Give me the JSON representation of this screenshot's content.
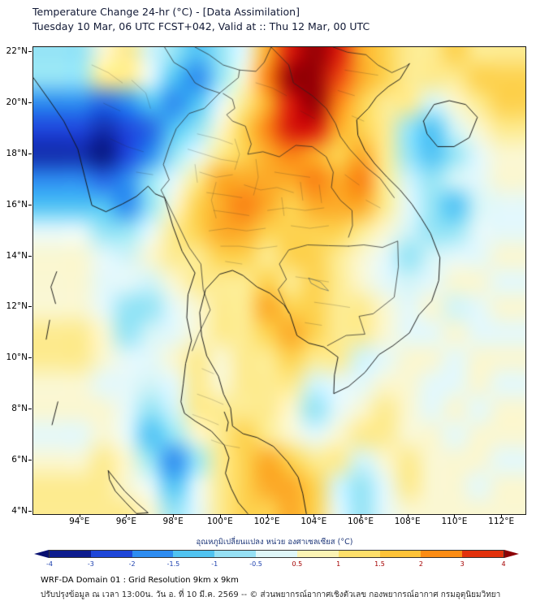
{
  "footer": {
    "line1": "WRF-DA Domain 01 : Grid Resolution 9km x 9km",
    "line2": "ปรับปรุงข้อมูล ณ เวลา 13:00น. วัน อ. ที่ 10 มี.ค. 2569 -- © ส่วนพยากรณ์อากาศเชิงตัวเลข กองพยากรณ์อากาศ กรมอุตุนิยมวิทยา"
  },
  "chart_data": {
    "type": "heatmap",
    "title": "Temperature Change 24-hr (°C) - [Data Assimilation]",
    "subtitle": "Tuesday 10 Mar, 06 UTC FCST+042, Valid at :: Thu 12 Mar, 00 UTC",
    "axes": {
      "lon_range": [
        92,
        113
      ],
      "lat_range": [
        3.9,
        22.2
      ],
      "lat_tick_values": [
        22,
        20,
        18,
        16,
        14,
        12,
        10,
        8,
        6,
        4
      ],
      "lat_tick_labels": [
        "22°N",
        "20°N",
        "18°N",
        "16°N",
        "14°N",
        "12°N",
        "10°N",
        "8°N",
        "6°N",
        "4°N"
      ],
      "lon_tick_values": [
        94,
        96,
        98,
        100,
        102,
        104,
        106,
        108,
        110,
        112
      ],
      "lon_tick_labels": [
        "94°E",
        "96°E",
        "98°E",
        "100°E",
        "102°E",
        "104°E",
        "106°E",
        "108°E",
        "110°E",
        "112°E"
      ]
    },
    "grid": {
      "units": "°C (24-hr temperature change)",
      "lon_start": 94,
      "lon_step": 1,
      "lat_start": 22,
      "lat_step": -1,
      "values": [
        [
          -1,
          0.5,
          1,
          -0.5,
          -1,
          -1.5,
          -1,
          0,
          2,
          3.5,
          4,
          3.5,
          2,
          1.5,
          1,
          1,
          1.5,
          1,
          1
        ],
        [
          -1,
          1,
          1,
          0,
          -1.5,
          -2,
          -1,
          0.5,
          2.5,
          4,
          4,
          3,
          2,
          1.5,
          1,
          1,
          1,
          1.5,
          1.5
        ],
        [
          -2,
          -2.5,
          -2,
          -1.5,
          -2,
          -1.5,
          0,
          1,
          2,
          3.5,
          4,
          2.5,
          1.5,
          1,
          1,
          -0.5,
          0.5,
          1,
          1.5
        ],
        [
          -3,
          -3.5,
          -3,
          -2.5,
          -1.5,
          -1,
          0.5,
          1.5,
          2.5,
          3.5,
          3.5,
          2,
          1.5,
          1,
          -1,
          -1.5,
          -0.5,
          0.5,
          1
        ],
        [
          -3.5,
          -4,
          -3,
          -2,
          -1,
          0,
          1,
          1.5,
          2,
          2.5,
          2,
          1.5,
          2,
          1,
          -1,
          -1.5,
          -1,
          0,
          0.5
        ],
        [
          -2,
          -2.5,
          -2,
          -1,
          0,
          1,
          2,
          2,
          2,
          2,
          2.5,
          2,
          2.5,
          1,
          -0.5,
          -1,
          -0.5,
          0,
          0.5
        ],
        [
          -1.5,
          -1.5,
          -2,
          -1,
          0.5,
          1.5,
          2,
          2.5,
          2,
          1.5,
          2,
          2,
          2,
          1,
          0,
          -1,
          -1.5,
          -0.5,
          0
        ],
        [
          0,
          -1,
          -1,
          0,
          1,
          1.5,
          2,
          2,
          1.5,
          1.5,
          1.5,
          1.5,
          1,
          0.5,
          -0.5,
          -1,
          -1,
          0,
          0
        ],
        [
          0.5,
          0,
          -0.5,
          0.5,
          1,
          1,
          1.5,
          1.5,
          1,
          1.5,
          1.5,
          1,
          0.5,
          0,
          -1,
          -0.5,
          0,
          0,
          0.5
        ],
        [
          0.5,
          0,
          0,
          -0.5,
          0.5,
          1,
          1,
          1,
          1.5,
          1,
          1.5,
          1,
          0.5,
          0,
          -0.5,
          0,
          0.5,
          0.5,
          0
        ],
        [
          0.5,
          0,
          -1,
          -1,
          0,
          0.5,
          1,
          1,
          2,
          1.5,
          1.5,
          1,
          1,
          0.5,
          0,
          0.5,
          -0.5,
          0,
          0.5
        ],
        [
          1,
          0.5,
          -1,
          -0.5,
          0,
          0.5,
          1,
          1,
          1.5,
          2,
          1.5,
          1,
          1,
          0.5,
          0,
          0,
          0.5,
          0,
          0
        ],
        [
          1,
          0.5,
          0,
          0,
          0.5,
          1,
          0.5,
          1,
          1,
          1.5,
          1,
          1,
          -0.5,
          0,
          0.5,
          0.5,
          0,
          0.5,
          0.5
        ],
        [
          0.5,
          0,
          0,
          -0.5,
          0,
          1,
          0.5,
          1,
          1,
          1,
          -0.5,
          0,
          0,
          0.5,
          0.5,
          0,
          0,
          0.5,
          0
        ],
        [
          0.5,
          0.5,
          0,
          -1,
          -0.5,
          1,
          1,
          1,
          1,
          0.5,
          -1,
          0,
          0.5,
          1,
          0.5,
          0,
          0.5,
          0,
          0.5
        ],
        [
          0,
          0.5,
          0,
          -1.5,
          -1,
          0.5,
          1,
          1.5,
          1,
          0.5,
          0,
          0.5,
          1,
          1,
          0.5,
          0.5,
          0,
          0.5,
          0.5
        ],
        [
          0.5,
          1,
          0.5,
          -1,
          -2,
          -1,
          1,
          1.5,
          2,
          1.5,
          1,
          1,
          -0.5,
          0.5,
          1,
          0.5,
          0.5,
          0.5,
          0
        ],
        [
          1,
          1,
          0.5,
          0,
          -1.5,
          0,
          1,
          1.5,
          2,
          2,
          1.5,
          -0.5,
          -1,
          0,
          1,
          0.5,
          0.5,
          0,
          0.5
        ],
        [
          1,
          1,
          1,
          0.5,
          -1,
          0,
          1,
          1.5,
          1.5,
          2,
          1.5,
          0,
          -1,
          0,
          0.5,
          0.5,
          0.5,
          0.5,
          0.5
        ]
      ]
    },
    "colormap_stops": [
      [
        -4,
        8,
        24,
        130
      ],
      [
        -3,
        30,
        70,
        220
      ],
      [
        -2,
        45,
        140,
        240
      ],
      [
        -1.5,
        80,
        195,
        245
      ],
      [
        -1,
        150,
        228,
        246
      ],
      [
        -0.5,
        210,
        244,
        248
      ],
      [
        0,
        228,
        248,
        250
      ],
      [
        0.5,
        250,
        247,
        210
      ],
      [
        1,
        253,
        235,
        145
      ],
      [
        1.5,
        253,
        210,
        80
      ],
      [
        2,
        252,
        170,
        40
      ],
      [
        2.5,
        250,
        130,
        20
      ],
      [
        3,
        235,
        70,
        15
      ],
      [
        3.5,
        215,
        25,
        10
      ],
      [
        4,
        150,
        0,
        5
      ]
    ],
    "colorbar": {
      "label": "อุณหภูมิเปลี่ยนแปลง หน่วย องศาเซลเซียส (°C)",
      "tick_labels": [
        "-4",
        "-3",
        "-2",
        "-1.5",
        "-1",
        "-0.5",
        "0.5",
        "1",
        "1.5",
        "2",
        "3",
        "4"
      ],
      "segment_colors": [
        "#0d1c8e",
        "#1e46d8",
        "#2d8cf0",
        "#50c3f0",
        "#96e0f4",
        "#dff6f8",
        "#fbf3b4",
        "#fddf6a",
        "#fdc237",
        "#fb8c14",
        "#e2310c"
      ],
      "arrow_left_color": "#081070",
      "arrow_right_color": "#8c0005",
      "negative_label_color": "#1b3fae",
      "positive_label_color": "#a40000"
    }
  }
}
